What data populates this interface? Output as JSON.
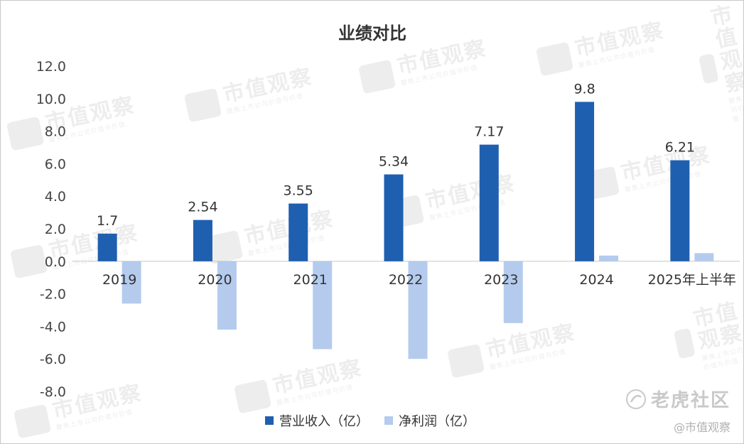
{
  "chart_data": {
    "type": "bar",
    "title": "业绩对比",
    "categories": [
      "2019",
      "2020",
      "2021",
      "2022",
      "2023",
      "2024",
      "2025年上半年"
    ],
    "series": [
      {
        "name": "营业收入（亿）",
        "color": "#1f5fb0",
        "values": [
          1.7,
          2.54,
          3.55,
          5.34,
          7.17,
          9.8,
          6.21
        ],
        "labels": [
          "1.7",
          "2.54",
          "3.55",
          "5.34",
          "7.17",
          "9.8",
          "6.21"
        ]
      },
      {
        "name": "净利润（亿）",
        "color": "#b4cbee",
        "values": [
          -2.6,
          -4.2,
          -5.4,
          -6.0,
          -3.8,
          0.35,
          0.5
        ]
      }
    ],
    "ylim": [
      -8,
      12
    ],
    "y_ticks": [
      "12.0",
      "10.0",
      "8.0",
      "6.0",
      "4.0",
      "2.0",
      "0.0",
      "-2.0",
      "-4.0",
      "-6.0",
      "-8.0"
    ],
    "xlabel": "",
    "ylabel": "",
    "grid": false,
    "legend": "bottom"
  },
  "watermark": {
    "name": "市值观察",
    "slogan": "聚焦上市公司价值与价值"
  },
  "corner_brand": {
    "name": "老虎社区",
    "handle": "@市值观察"
  }
}
